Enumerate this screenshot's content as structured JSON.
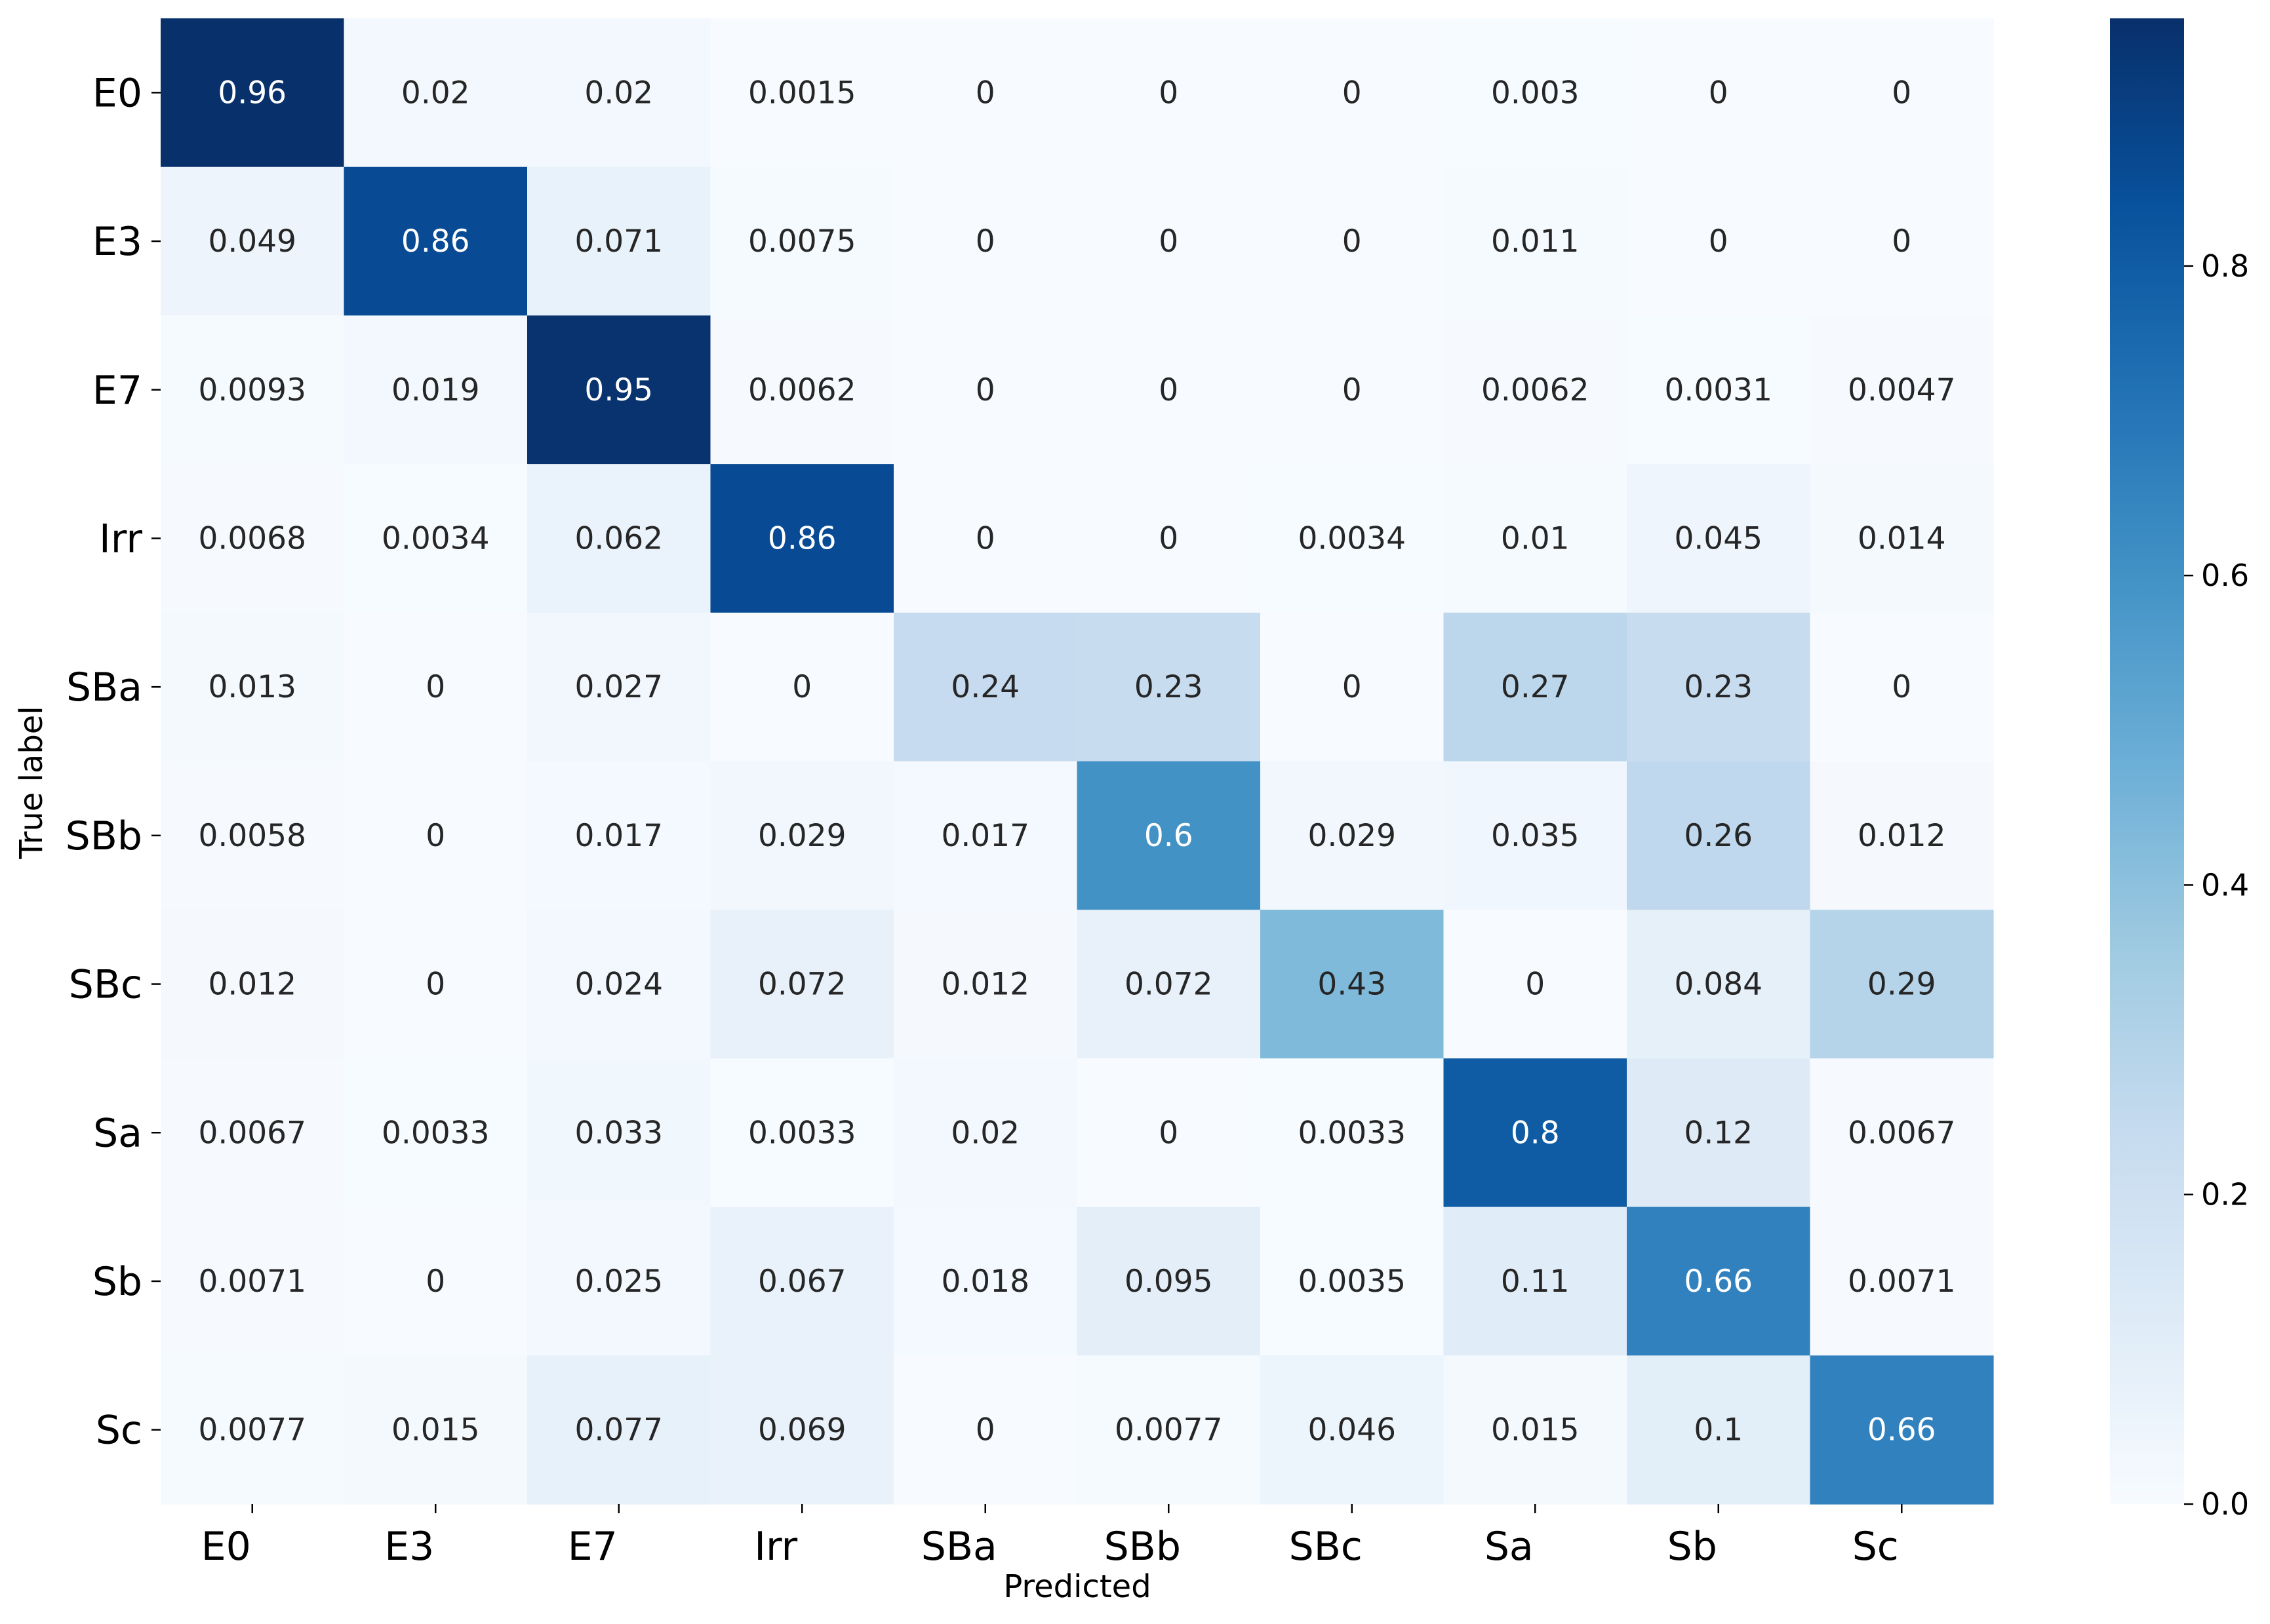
{
  "chart_data": {
    "type": "heatmap",
    "title": "",
    "xlabel": "Predicted",
    "ylabel": "True label",
    "x_categories": [
      "E0",
      "E3",
      "E7",
      "Irr",
      "SBa",
      "SBb",
      "SBc",
      "Sa",
      "Sb",
      "Sc"
    ],
    "y_categories": [
      "E0",
      "E3",
      "E7",
      "Irr",
      "SBa",
      "SBb",
      "SBc",
      "Sa",
      "Sb",
      "Sc"
    ],
    "values": [
      [
        0.96,
        0.02,
        0.02,
        0.0015,
        0.0,
        0.0,
        0.0,
        0.003,
        0.0,
        0.0
      ],
      [
        0.049,
        0.86,
        0.071,
        0.0075,
        0.0,
        0.0,
        0.0,
        0.011,
        0.0,
        0.0
      ],
      [
        0.0093,
        0.019,
        0.95,
        0.0062,
        0.0,
        0.0,
        0.0,
        0.0062,
        0.0031,
        0.0047
      ],
      [
        0.0068,
        0.0034,
        0.062,
        0.86,
        0.0,
        0.0,
        0.0034,
        0.01,
        0.045,
        0.014
      ],
      [
        0.013,
        0.0,
        0.027,
        0.0,
        0.24,
        0.23,
        0.0,
        0.27,
        0.23,
        0.0
      ],
      [
        0.0058,
        0.0,
        0.017,
        0.029,
        0.017,
        0.6,
        0.029,
        0.035,
        0.26,
        0.012
      ],
      [
        0.012,
        0.0,
        0.024,
        0.072,
        0.012,
        0.072,
        0.43,
        0.0,
        0.084,
        0.29
      ],
      [
        0.0067,
        0.0033,
        0.033,
        0.0033,
        0.02,
        0.0,
        0.0033,
        0.8,
        0.12,
        0.0067
      ],
      [
        0.0071,
        0.0,
        0.025,
        0.067,
        0.018,
        0.095,
        0.0035,
        0.11,
        0.66,
        0.0071
      ],
      [
        0.0077,
        0.015,
        0.077,
        0.069,
        0.0,
        0.0077,
        0.046,
        0.015,
        0.1,
        0.66
      ]
    ],
    "colormap": "Blues",
    "colorbar_range": [
      0.0,
      0.96
    ],
    "colorbar_ticks": [
      "0.0",
      "0.2",
      "0.4",
      "0.6",
      "0.8"
    ],
    "legend": "colorbar right",
    "grid": false
  }
}
